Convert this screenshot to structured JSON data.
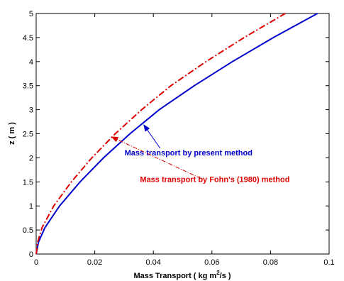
{
  "chart_data": {
    "type": "line",
    "title": "",
    "xlabel_parts": {
      "pre": "Mass Transport ( kg m",
      "sup": "2",
      "post": "/s )"
    },
    "ylabel": "z ( m )",
    "xlim": [
      0,
      0.1
    ],
    "ylim": [
      0,
      5
    ],
    "x_ticks": [
      0,
      0.02,
      0.04,
      0.06,
      0.08,
      0.1
    ],
    "x_tick_labels": [
      "0",
      "0.02",
      "0.04",
      "0.06",
      "0.08",
      "0.1"
    ],
    "y_ticks": [
      0,
      0.5,
      1,
      1.5,
      2,
      2.5,
      3,
      3.5,
      4,
      4.5,
      5
    ],
    "y_tick_labels": [
      "0",
      "0.5",
      "1",
      "1.5",
      "2",
      "2.5",
      "3",
      "3.5",
      "4",
      "4.5",
      "5"
    ],
    "grid": false,
    "series": [
      {
        "name": "Mass transport by present method",
        "color": "#0000cc",
        "style": "solid",
        "x": [
          0,
          0.0008,
          0.003,
          0.008,
          0.015,
          0.023,
          0.032,
          0.042,
          0.054,
          0.067,
          0.081,
          0.096
        ],
        "y": [
          0,
          0.25,
          0.55,
          1.0,
          1.5,
          2.0,
          2.5,
          3.0,
          3.5,
          4.0,
          4.5,
          5.0
        ]
      },
      {
        "name": "Mass transport by Fohn's (1980) method",
        "color": "#dd0000",
        "style": "dashdot",
        "x": [
          0,
          0.0005,
          0.002,
          0.006,
          0.012,
          0.019,
          0.027,
          0.036,
          0.046,
          0.058,
          0.071,
          0.085
        ],
        "y": [
          0,
          0.25,
          0.55,
          1.0,
          1.5,
          2.0,
          2.5,
          3.0,
          3.5,
          4.0,
          4.5,
          5.0
        ]
      }
    ],
    "annotations": [
      {
        "text": "Mass transport by present method",
        "color": "#0000cc",
        "point": [
          0.0365,
          2.7
        ],
        "text_at": [
          0.052,
          2.05
        ]
      },
      {
        "text": "Mass transport by Fohn's (1980) method",
        "color": "#dd0000",
        "point": [
          0.0255,
          2.45
        ],
        "text_at": [
          0.061,
          1.5
        ]
      }
    ]
  }
}
